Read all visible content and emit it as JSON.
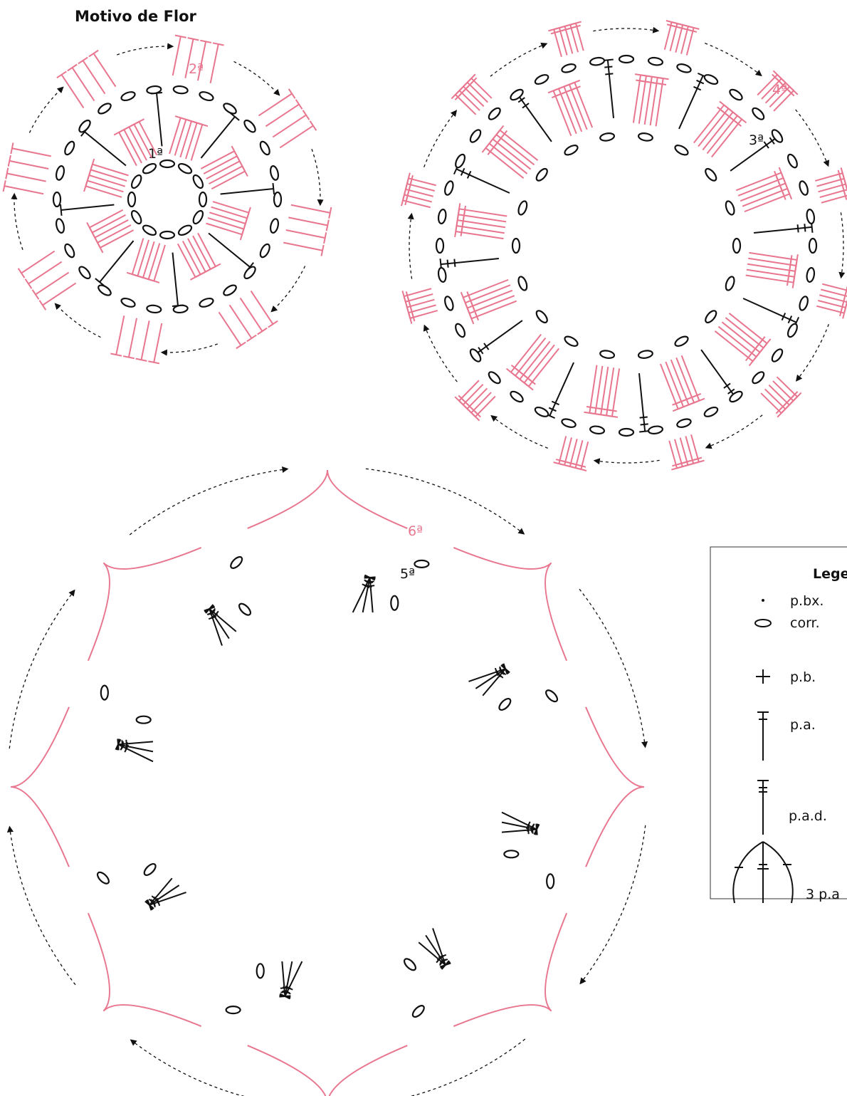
{
  "title": "Motivo de Flor",
  "rounds": [
    "1ª",
    "2ª",
    "3ª",
    "4ª",
    "5ª",
    "6ª"
  ],
  "legend": {
    "title": "Lege",
    "items": [
      "p.bx.",
      "corr.",
      "p.b.",
      "p.a.",
      "p.a.d.",
      "3 p.a"
    ]
  }
}
